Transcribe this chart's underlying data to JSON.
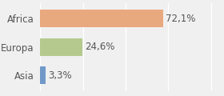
{
  "categories": [
    "Africa",
    "Europa",
    "Asia"
  ],
  "values": [
    72.1,
    24.6,
    3.3
  ],
  "labels": [
    "72,1%",
    "24,6%",
    "3,3%"
  ],
  "bar_colors": [
    "#e8a97e",
    "#b5c98e",
    "#7199c8"
  ],
  "background_color": "#f0f0f0",
  "xlim": [
    0,
    105
  ],
  "bar_height": 0.62,
  "label_fontsize": 8.5,
  "category_fontsize": 8.5
}
